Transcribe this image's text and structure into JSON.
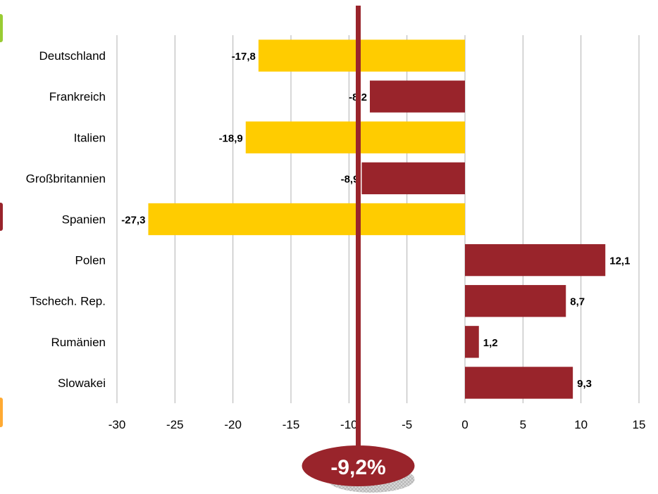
{
  "chart_data": {
    "type": "bar",
    "orientation": "horizontal",
    "categories": [
      "Deutschland",
      "Frankreich",
      "Italien",
      "Großbritannien",
      "Spanien",
      "Polen",
      "Tschech. Rep.",
      "Rumänien",
      "Slowakei"
    ],
    "values": [
      -17.8,
      -8.2,
      -18.9,
      -8.9,
      -27.3,
      12.1,
      8.7,
      1.2,
      9.3
    ],
    "value_labels": [
      "-17,8",
      "-8,2",
      "-18,9",
      "-8,9",
      "-27,3",
      "12,1",
      "8,7",
      "1,2",
      "9,3"
    ],
    "bar_colors": [
      "#FFCC00",
      "#99242B",
      "#FFCC00",
      "#99242B",
      "#FFCC00",
      "#99242B",
      "#99242B",
      "#99242B",
      "#99242B"
    ],
    "xlim": [
      -30,
      15
    ],
    "xticks": [
      -30,
      -25,
      -20,
      -15,
      -10,
      -5,
      0,
      5,
      10,
      15
    ],
    "xtick_labels": [
      "-30",
      "-25",
      "-20",
      "-15",
      "-10",
      "-5",
      "0",
      "5",
      "10",
      "15"
    ],
    "grid": true,
    "title": "",
    "xlabel": "",
    "ylabel": "",
    "reference_line": {
      "value": -9.2,
      "label": "-9,2%",
      "color": "#99242B"
    }
  },
  "colors": {
    "yellow": "#FFCC00",
    "red": "#99242B",
    "grid": "#B0B0B0",
    "edge_tab_green": "#99CC33",
    "edge_tab_red": "#99242B",
    "edge_tab_orange": "#FFAA33"
  }
}
